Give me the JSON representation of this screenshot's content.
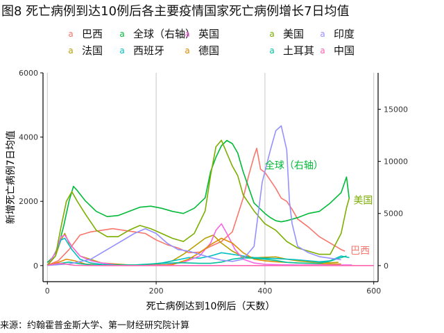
{
  "title": "图8 死亡病例到达10例后各主要疫情国家死亡病例增长7日均值",
  "source": "来源：约翰霍普金斯大学、第一财经研究院计算",
  "legend_key_glyph": "a",
  "chart_data": {
    "type": "line",
    "xlabel": "死亡病例达到10例后（天数）",
    "ylabel": "新增死亡病例7日均值",
    "xlim": [
      -8,
      608
    ],
    "ylim": [
      -500,
      6000
    ],
    "y2lim": [
      -1540,
      18490
    ],
    "x_ticks": [
      0,
      200,
      400,
      600
    ],
    "y_ticks": [
      0,
      2000,
      4000,
      6000
    ],
    "y2_ticks": [
      0,
      5000,
      10000,
      15000
    ],
    "grid": "vertical",
    "legend_position": "top",
    "series": [
      {
        "name": "巴西",
        "color": "#F8766D",
        "axis": "left",
        "label": "巴西",
        "points": [
          [
            0,
            10
          ],
          [
            20,
            150
          ],
          [
            40,
            500
          ],
          [
            60,
            950
          ],
          [
            80,
            1050
          ],
          [
            100,
            1100
          ],
          [
            120,
            1150
          ],
          [
            140,
            1100
          ],
          [
            160,
            1050
          ],
          [
            180,
            1000
          ],
          [
            200,
            800
          ],
          [
            220,
            650
          ],
          [
            240,
            550
          ],
          [
            260,
            400
          ],
          [
            280,
            420
          ],
          [
            300,
            600
          ],
          [
            320,
            750
          ],
          [
            340,
            1050
          ],
          [
            360,
            2100
          ],
          [
            370,
            2800
          ],
          [
            380,
            3400
          ],
          [
            385,
            3650
          ],
          [
            392,
            3000
          ],
          [
            400,
            2900
          ],
          [
            410,
            2650
          ],
          [
            420,
            2400
          ],
          [
            430,
            2100
          ],
          [
            440,
            2000
          ],
          [
            450,
            1750
          ],
          [
            460,
            1450
          ],
          [
            480,
            1200
          ],
          [
            500,
            900
          ],
          [
            520,
            700
          ],
          [
            540,
            500
          ],
          [
            547,
            450
          ]
        ]
      },
      {
        "name": "法国",
        "color": "#B79F00",
        "axis": "left",
        "points": [
          [
            0,
            10
          ],
          [
            15,
            300
          ],
          [
            25,
            800
          ],
          [
            32,
            1000
          ],
          [
            40,
            700
          ],
          [
            60,
            300
          ],
          [
            100,
            80
          ],
          [
            150,
            20
          ],
          [
            200,
            30
          ],
          [
            230,
            150
          ],
          [
            250,
            350
          ],
          [
            270,
            600
          ],
          [
            290,
            850
          ],
          [
            305,
            950
          ],
          [
            320,
            700
          ],
          [
            340,
            450
          ],
          [
            360,
            280
          ],
          [
            380,
            240
          ],
          [
            400,
            260
          ],
          [
            420,
            270
          ],
          [
            440,
            200
          ],
          [
            460,
            150
          ],
          [
            480,
            120
          ],
          [
            500,
            100
          ],
          [
            520,
            90
          ],
          [
            535,
            100
          ]
        ]
      },
      {
        "name": "全球（右轴）",
        "color": "#00BA38",
        "axis": "right",
        "points": [
          [
            0,
            300
          ],
          [
            10,
            800
          ],
          [
            20,
            1800
          ],
          [
            30,
            3800
          ],
          [
            40,
            6200
          ],
          [
            48,
            7600
          ],
          [
            55,
            7200
          ],
          [
            70,
            6200
          ],
          [
            90,
            5200
          ],
          [
            110,
            4700
          ],
          [
            130,
            4800
          ],
          [
            150,
            5200
          ],
          [
            170,
            5600
          ],
          [
            190,
            5700
          ],
          [
            210,
            5500
          ],
          [
            230,
            5200
          ],
          [
            250,
            5000
          ],
          [
            270,
            5500
          ],
          [
            290,
            6500
          ],
          [
            300,
            9000
          ],
          [
            310,
            10400
          ],
          [
            320,
            11500
          ],
          [
            330,
            12000
          ],
          [
            340,
            11700
          ],
          [
            350,
            10800
          ],
          [
            360,
            9000
          ],
          [
            370,
            7500
          ],
          [
            380,
            6000
          ],
          [
            390,
            5500
          ],
          [
            400,
            5000
          ],
          [
            410,
            4600
          ],
          [
            420,
            4300
          ],
          [
            430,
            4200
          ],
          [
            440,
            4300
          ],
          [
            460,
            4600
          ],
          [
            480,
            5000
          ],
          [
            500,
            5200
          ],
          [
            520,
            6000
          ],
          [
            540,
            7000
          ],
          [
            550,
            8500
          ],
          [
            555,
            6400
          ]
        ]
      },
      {
        "name": "西班牙",
        "color": "#00BFC4",
        "axis": "left",
        "points": [
          [
            0,
            10
          ],
          [
            15,
            400
          ],
          [
            25,
            800
          ],
          [
            32,
            850
          ],
          [
            45,
            500
          ],
          [
            60,
            200
          ],
          [
            80,
            80
          ],
          [
            100,
            40
          ],
          [
            120,
            20
          ],
          [
            150,
            15
          ],
          [
            180,
            30
          ],
          [
            210,
            80
          ],
          [
            240,
            180
          ],
          [
            260,
            250
          ],
          [
            280,
            230
          ],
          [
            300,
            300
          ],
          [
            320,
            400
          ],
          [
            340,
            350
          ],
          [
            360,
            300
          ],
          [
            380,
            250
          ],
          [
            400,
            230
          ],
          [
            420,
            220
          ],
          [
            440,
            200
          ],
          [
            460,
            180
          ],
          [
            480,
            150
          ],
          [
            500,
            120
          ],
          [
            520,
            150
          ],
          [
            540,
            300
          ],
          [
            555,
            250
          ]
        ]
      },
      {
        "name": "英国",
        "color": "#F564E3",
        "axis": "left",
        "points": [
          [
            0,
            10
          ],
          [
            15,
            400
          ],
          [
            25,
            900
          ],
          [
            32,
            950
          ],
          [
            45,
            600
          ],
          [
            60,
            300
          ],
          [
            80,
            150
          ],
          [
            100,
            80
          ],
          [
            130,
            20
          ],
          [
            160,
            10
          ],
          [
            190,
            15
          ],
          [
            220,
            30
          ],
          [
            250,
            100
          ],
          [
            280,
            300
          ],
          [
            300,
            700
          ],
          [
            310,
            1100
          ],
          [
            320,
            1300
          ],
          [
            330,
            1000
          ],
          [
            345,
            500
          ],
          [
            360,
            200
          ],
          [
            380,
            80
          ],
          [
            400,
            40
          ],
          [
            430,
            25
          ],
          [
            460,
            20
          ],
          [
            500,
            20
          ],
          [
            540,
            20
          ],
          [
            560,
            20
          ]
        ]
      },
      {
        "name": "德国",
        "color": "#DE8C00",
        "axis": "left",
        "points": [
          [
            0,
            10
          ],
          [
            20,
            100
          ],
          [
            35,
            200
          ],
          [
            50,
            150
          ],
          [
            70,
            50
          ],
          [
            100,
            10
          ],
          [
            150,
            5
          ],
          [
            200,
            5
          ],
          [
            230,
            30
          ],
          [
            260,
            200
          ],
          [
            280,
            400
          ],
          [
            300,
            650
          ],
          [
            320,
            850
          ],
          [
            340,
            700
          ],
          [
            360,
            400
          ],
          [
            380,
            200
          ],
          [
            400,
            150
          ],
          [
            420,
            120
          ],
          [
            440,
            100
          ],
          [
            460,
            80
          ],
          [
            480,
            70
          ],
          [
            500,
            60
          ],
          [
            520,
            50
          ],
          [
            540,
            50
          ]
        ]
      },
      {
        "name": "美国",
        "color": "#7CAE00",
        "axis": "left",
        "label": "美国",
        "points": [
          [
            0,
            10
          ],
          [
            15,
            300
          ],
          [
            25,
            1200
          ],
          [
            35,
            2000
          ],
          [
            45,
            2300
          ],
          [
            55,
            2000
          ],
          [
            70,
            1600
          ],
          [
            90,
            1100
          ],
          [
            110,
            900
          ],
          [
            130,
            900
          ],
          [
            150,
            1100
          ],
          [
            170,
            1250
          ],
          [
            190,
            1150
          ],
          [
            210,
            1000
          ],
          [
            230,
            850
          ],
          [
            250,
            750
          ],
          [
            270,
            1000
          ],
          [
            290,
            1700
          ],
          [
            300,
            2800
          ],
          [
            310,
            3700
          ],
          [
            320,
            3900
          ],
          [
            330,
            3500
          ],
          [
            340,
            3100
          ],
          [
            350,
            2800
          ],
          [
            360,
            2200
          ],
          [
            380,
            1700
          ],
          [
            400,
            1300
          ],
          [
            420,
            1100
          ],
          [
            440,
            750
          ],
          [
            460,
            550
          ],
          [
            480,
            450
          ],
          [
            500,
            350
          ],
          [
            520,
            350
          ],
          [
            540,
            1000
          ],
          [
            550,
            1800
          ],
          [
            555,
            2100
          ]
        ]
      },
      {
        "name": "土耳其",
        "color": "#00C19F",
        "axis": "left",
        "points": [
          [
            0,
            10
          ],
          [
            20,
            60
          ],
          [
            40,
            110
          ],
          [
            60,
            60
          ],
          [
            80,
            25
          ],
          [
            120,
            20
          ],
          [
            160,
            20
          ],
          [
            200,
            60
          ],
          [
            240,
            90
          ],
          [
            260,
            80
          ],
          [
            280,
            70
          ],
          [
            300,
            70
          ],
          [
            320,
            110
          ],
          [
            340,
            200
          ],
          [
            360,
            240
          ],
          [
            380,
            230
          ],
          [
            400,
            200
          ],
          [
            420,
            160
          ],
          [
            440,
            100
          ],
          [
            460,
            80
          ],
          [
            480,
            75
          ],
          [
            500,
            70
          ],
          [
            520,
            140
          ],
          [
            540,
            250
          ],
          [
            550,
            300
          ]
        ]
      },
      {
        "name": "印度",
        "color": "#9590FF",
        "axis": "left",
        "points": [
          [
            0,
            5
          ],
          [
            40,
            50
          ],
          [
            80,
            200
          ],
          [
            120,
            600
          ],
          [
            160,
            1000
          ],
          [
            180,
            1150
          ],
          [
            200,
            1000
          ],
          [
            220,
            700
          ],
          [
            240,
            500
          ],
          [
            260,
            450
          ],
          [
            280,
            350
          ],
          [
            300,
            250
          ],
          [
            320,
            170
          ],
          [
            340,
            130
          ],
          [
            360,
            200
          ],
          [
            380,
            600
          ],
          [
            395,
            2600
          ],
          [
            410,
            3600
          ],
          [
            420,
            4200
          ],
          [
            430,
            4350
          ],
          [
            440,
            3600
          ],
          [
            445,
            2000
          ],
          [
            450,
            1300
          ],
          [
            460,
            600
          ],
          [
            480,
            400
          ],
          [
            500,
            280
          ],
          [
            520,
            230
          ],
          [
            540,
            180
          ]
        ]
      },
      {
        "name": "中国",
        "color": "#FF64B0",
        "axis": "left",
        "points": [
          [
            0,
            10
          ],
          [
            10,
            40
          ],
          [
            20,
            70
          ],
          [
            30,
            60
          ],
          [
            40,
            30
          ],
          [
            50,
            10
          ],
          [
            60,
            5
          ],
          [
            100,
            0
          ],
          [
            200,
            0
          ],
          [
            300,
            0
          ],
          [
            400,
            0
          ],
          [
            500,
            0
          ],
          [
            600,
            0
          ]
        ]
      }
    ]
  }
}
